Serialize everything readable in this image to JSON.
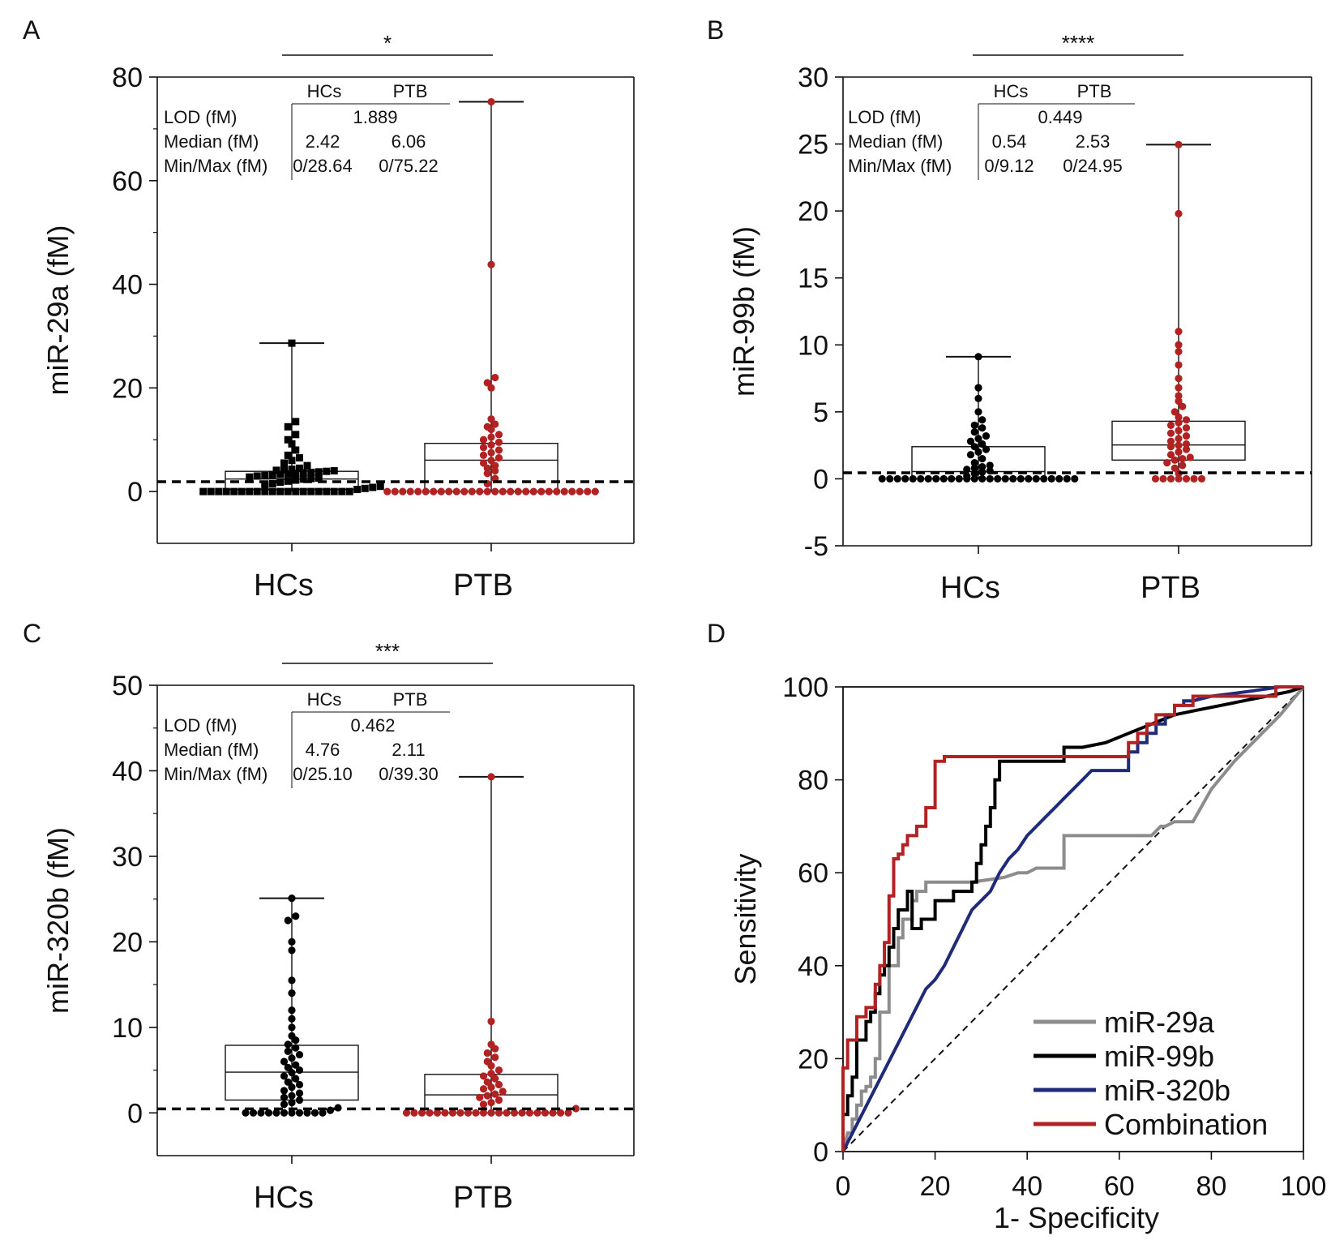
{
  "chart_data": [
    {
      "panel": "A",
      "type": "box-scatter",
      "title": "",
      "xlabel": "",
      "ylabel": "miR-29a (fM)",
      "categories": [
        "HCs",
        "PTB"
      ],
      "ylim": [
        -10,
        80
      ],
      "yticks": [
        "80",
        "60",
        "40",
        "20",
        "0"
      ],
      "significance": "*",
      "table": {
        "headers": [
          "HCs",
          "PTB"
        ],
        "rows": [
          {
            "label": "LOD (fM)",
            "shared": "1.889"
          },
          {
            "label": "Median (fM)",
            "hcs": "2.42",
            "ptb": "6.06"
          },
          {
            "label": "Min/Max (fM)",
            "hcs": "0/28.64",
            "ptb": "0/75.22"
          }
        ]
      },
      "lod": 1.889,
      "groups": [
        {
          "name": "HCs",
          "color": "#000000",
          "marker": "square",
          "min": 0,
          "q1": 0.4,
          "median": 2.42,
          "q3": 3.9,
          "max": 28.64,
          "values": [
            0,
            0,
            0,
            0,
            0,
            0,
            0,
            0,
            0,
            0,
            0,
            0,
            0,
            0,
            0,
            0,
            0,
            0,
            0,
            0,
            0.4,
            0.6,
            0.8,
            1,
            1.2,
            1.5,
            1.8,
            2,
            2.2,
            2.4,
            2.5,
            2.6,
            2.8,
            3,
            3.1,
            3.2,
            3.3,
            3.4,
            3.5,
            3.6,
            3.7,
            3.8,
            3.9,
            4,
            4.1,
            4.2,
            4.3,
            4.5,
            5,
            5.5,
            6,
            6.5,
            7,
            8,
            10,
            11,
            12.5,
            13.5,
            9.2,
            28.64
          ]
        },
        {
          "name": "PTB",
          "color": "#b22222",
          "marker": "circle",
          "min": 0,
          "q1": 0,
          "median": 6.06,
          "q3": 9.3,
          "max": 75.22,
          "values": [
            0,
            0,
            0,
            0,
            0,
            0,
            0,
            0,
            0,
            0,
            0,
            0,
            0,
            0,
            0,
            0,
            0,
            0,
            0,
            0,
            0,
            0,
            0,
            0,
            0,
            0,
            0,
            0,
            1.5,
            2.5,
            3.5,
            4,
            4.5,
            5,
            5.5,
            6,
            6.5,
            7,
            7.5,
            8,
            8.5,
            9,
            9.5,
            10,
            10.5,
            11,
            12,
            12.5,
            13,
            14,
            20,
            21,
            22,
            43.8,
            75.22
          ]
        }
      ]
    },
    {
      "panel": "B",
      "type": "box-scatter",
      "title": "",
      "xlabel": "",
      "ylabel": "miR-99b (fM)",
      "categories": [
        "HCs",
        "PTB"
      ],
      "ylim": [
        -5,
        30
      ],
      "yticks": [
        "30",
        "25",
        "20",
        "15",
        "10",
        "5",
        "0",
        "-5"
      ],
      "significance": "****",
      "table": {
        "headers": [
          "HCs",
          "PTB"
        ],
        "rows": [
          {
            "label": "LOD (fM)",
            "shared": "0.449"
          },
          {
            "label": "Median (fM)",
            "hcs": "0.54",
            "ptb": "2.53"
          },
          {
            "label": "Min/Max (fM)",
            "hcs": "0/9.12",
            "ptb": "0/24.95"
          }
        ]
      },
      "lod": 0.449,
      "groups": [
        {
          "name": "HCs",
          "color": "#000000",
          "marker": "circle",
          "min": 0,
          "q1": 0,
          "median": 0.54,
          "q3": 2.4,
          "max": 9.12,
          "values": [
            0,
            0,
            0,
            0,
            0,
            0,
            0,
            0,
            0,
            0,
            0,
            0,
            0,
            0,
            0,
            0,
            0,
            0,
            0,
            0,
            0,
            0,
            0,
            0,
            0,
            0,
            0.2,
            0.4,
            0.5,
            0.6,
            0.7,
            0.8,
            0.9,
            1,
            1.2,
            1.5,
            1.8,
            2,
            2.2,
            2.4,
            2.6,
            2.8,
            3,
            3.2,
            3.5,
            3.8,
            4,
            4.4,
            5,
            6,
            6.8,
            9.12
          ]
        },
        {
          "name": "PTB",
          "color": "#b22222",
          "marker": "circle",
          "min": 0,
          "q1": 1.4,
          "median": 2.53,
          "q3": 4.3,
          "max": 24.95,
          "values": [
            0,
            0,
            0,
            0,
            0,
            0,
            0,
            0.4,
            0.8,
            1,
            1.2,
            1.4,
            1.5,
            1.6,
            1.8,
            2,
            2.2,
            2.4,
            2.5,
            2.6,
            2.8,
            3,
            3.2,
            3.4,
            3.6,
            3.8,
            4,
            4.2,
            4.4,
            4.6,
            5,
            5.4,
            5.8,
            6.2,
            6.8,
            7.5,
            8.5,
            9.5,
            10,
            11,
            19.8,
            24.95
          ]
        }
      ]
    },
    {
      "panel": "C",
      "type": "box-scatter",
      "title": "",
      "xlabel": "",
      "ylabel": "miR-320b (fM)",
      "categories": [
        "HCs",
        "PTB"
      ],
      "ylim": [
        -5,
        50
      ],
      "yticks": [
        "50",
        "40",
        "30",
        "20",
        "10",
        "0"
      ],
      "significance": "***",
      "table": {
        "headers": [
          "HCs",
          "PTB"
        ],
        "rows": [
          {
            "label": "LOD (fM)",
            "shared": "0.462"
          },
          {
            "label": "Median (fM)",
            "hcs": "4.76",
            "ptb": "2.11"
          },
          {
            "label": "Min/Max (fM)",
            "hcs": "0/25.10",
            "ptb": "0/39.30"
          }
        ]
      },
      "lod": 0.462,
      "groups": [
        {
          "name": "HCs",
          "color": "#000000",
          "marker": "circle",
          "min": 0,
          "q1": 1.5,
          "median": 4.76,
          "q3": 7.9,
          "max": 25.1,
          "values": [
            0,
            0,
            0,
            0,
            0,
            0,
            0,
            0,
            0,
            0,
            0,
            0.3,
            0.6,
            1,
            1.2,
            1.5,
            1.8,
            2,
            2.3,
            2.6,
            3,
            3.3,
            3.6,
            4,
            4.3,
            4.7,
            5,
            5.3,
            5.6,
            6,
            6.4,
            6.8,
            7.2,
            7.6,
            8,
            8.5,
            9,
            10,
            11,
            12,
            14,
            15.5,
            19,
            20,
            22.5,
            23,
            25.1
          ]
        },
        {
          "name": "PTB",
          "color": "#b22222",
          "marker": "circle",
          "min": 0,
          "q1": 0,
          "median": 2.11,
          "q3": 4.5,
          "max": 39.3,
          "values": [
            0,
            0,
            0,
            0,
            0,
            0,
            0,
            0,
            0,
            0,
            0,
            0,
            0,
            0,
            0,
            0,
            0,
            0,
            0,
            0,
            0,
            0,
            0.5,
            1,
            1.2,
            1.5,
            1.8,
            2,
            2.2,
            2.5,
            2.8,
            3,
            3.3,
            3.6,
            4,
            4.3,
            4.6,
            5,
            5.5,
            6,
            6.5,
            7,
            7.5,
            8,
            10.7,
            39.3
          ]
        }
      ]
    },
    {
      "panel": "D",
      "type": "line",
      "title": "",
      "xlabel": "1- Specificity",
      "ylabel": "Sensitivity",
      "xlim": [
        0,
        100
      ],
      "ylim": [
        0,
        100
      ],
      "xticks": [
        "0",
        "20",
        "40",
        "60",
        "80",
        "100"
      ],
      "yticks": [
        "100",
        "80",
        "60",
        "40",
        "20",
        "0"
      ],
      "reference_line": "diagonal",
      "series": [
        {
          "name": "miR-29a",
          "color": "#8c8c8c",
          "x": [
            0,
            1,
            2,
            2,
            3,
            3,
            4,
            4,
            5,
            5,
            6,
            6,
            7,
            7,
            8,
            8,
            10,
            10,
            12,
            12,
            13,
            13,
            15,
            15,
            16,
            16,
            18,
            18,
            20,
            28,
            35,
            38,
            40,
            42,
            44,
            48,
            48,
            58,
            60,
            64,
            67,
            69,
            70,
            72,
            74,
            76,
            80,
            85,
            90,
            95,
            100
          ],
          "y": [
            0,
            4,
            4,
            7,
            7,
            10,
            10,
            13,
            13,
            14,
            14,
            16,
            16,
            20,
            20,
            30,
            30,
            40,
            40,
            46,
            46,
            50,
            50,
            54,
            54,
            56,
            56,
            58,
            58,
            58,
            59,
            60,
            60,
            61,
            61,
            61,
            68,
            68,
            68,
            68,
            68,
            70,
            70,
            71,
            71,
            71,
            78,
            84,
            89,
            94,
            100
          ]
        },
        {
          "name": "miR-99b",
          "color": "#000000",
          "x": [
            0,
            0,
            1,
            1,
            2,
            2,
            3,
            3,
            5,
            5,
            6,
            6,
            7,
            7,
            8,
            8,
            9,
            9,
            10,
            10,
            11,
            11,
            12,
            12,
            14,
            14,
            15,
            15,
            17,
            17,
            20,
            20,
            24,
            24,
            28,
            28,
            29,
            29,
            30,
            30,
            31,
            31,
            32,
            32,
            33,
            33,
            34,
            34,
            38,
            43,
            48,
            48,
            52,
            57,
            62,
            67,
            72,
            77,
            82,
            87,
            92,
            97,
            100
          ],
          "y": [
            0,
            8,
            8,
            12,
            12,
            16,
            16,
            24,
            24,
            28,
            28,
            30,
            30,
            34,
            34,
            38,
            38,
            40,
            40,
            44,
            44,
            48,
            48,
            52,
            52,
            56,
            56,
            48,
            48,
            50,
            50,
            54,
            54,
            56,
            56,
            58,
            58,
            62,
            62,
            66,
            66,
            70,
            70,
            74,
            74,
            80,
            80,
            84,
            84,
            84,
            84,
            87,
            87,
            88,
            90,
            92,
            94,
            95,
            96,
            97,
            98,
            99,
            100
          ]
        },
        {
          "name": "miR-320b",
          "color": "#1f2a7a",
          "x": [
            0,
            18,
            18,
            20,
            20,
            22,
            22,
            24,
            24,
            26,
            26,
            28,
            28,
            30,
            30,
            32,
            32,
            34,
            34,
            36,
            36,
            38,
            38,
            40,
            40,
            42,
            42,
            44,
            44,
            46,
            46,
            48,
            48,
            50,
            50,
            52,
            52,
            54,
            54,
            56,
            56,
            58,
            58,
            60,
            60,
            62,
            62,
            64,
            64,
            66,
            66,
            68,
            68,
            70,
            70,
            72,
            72,
            74,
            74,
            76,
            80,
            88,
            95,
            100
          ],
          "y": [
            0,
            35,
            35,
            37,
            37,
            40,
            40,
            44,
            44,
            48,
            48,
            52,
            52,
            54,
            54,
            56,
            56,
            60,
            60,
            63,
            63,
            65,
            65,
            68,
            68,
            70,
            70,
            72,
            72,
            74,
            74,
            76,
            76,
            78,
            78,
            80,
            80,
            82,
            82,
            82,
            82,
            82,
            82,
            82,
            82,
            82,
            86,
            86,
            88,
            88,
            90,
            90,
            92,
            92,
            94,
            94,
            96,
            96,
            97,
            97,
            98,
            99,
            100,
            100
          ]
        },
        {
          "name": "Combination",
          "color": "#b22222",
          "x": [
            0,
            0,
            1,
            1,
            3,
            3,
            5,
            5,
            7,
            7,
            8,
            8,
            9,
            9,
            10,
            10,
            11,
            11,
            12,
            12,
            13,
            13,
            14,
            14,
            16,
            16,
            18,
            18,
            20,
            20,
            22,
            22,
            58,
            58,
            62,
            62,
            64,
            64,
            66,
            66,
            68,
            68,
            72,
            72,
            76,
            76,
            94,
            94,
            100
          ],
          "y": [
            0,
            18,
            18,
            24,
            24,
            29,
            29,
            31,
            31,
            36,
            36,
            40,
            40,
            45,
            45,
            55,
            55,
            63,
            63,
            64,
            64,
            66,
            66,
            68,
            68,
            70,
            70,
            74,
            74,
            84,
            84,
            85,
            85,
            85,
            85,
            88,
            88,
            90,
            90,
            92,
            92,
            94,
            94,
            96,
            96,
            98,
            98,
            100,
            100
          ]
        }
      ]
    }
  ]
}
